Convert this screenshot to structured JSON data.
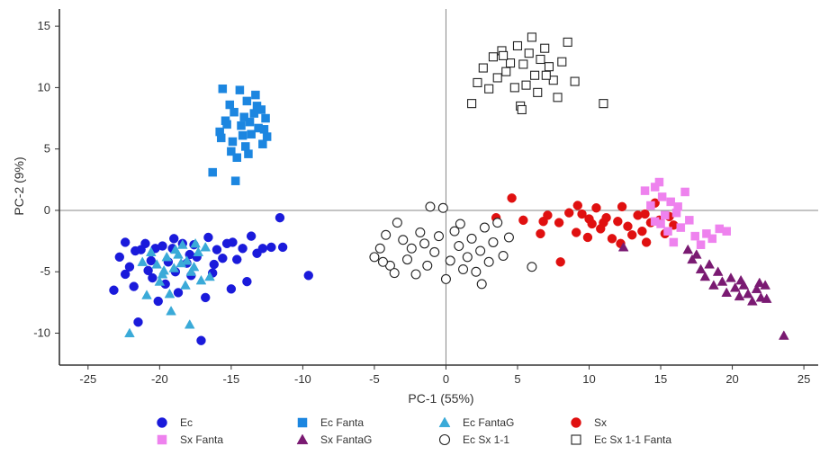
{
  "chart_data": {
    "type": "scatter",
    "title": "",
    "xlabel": "PC-1 (55%)",
    "ylabel": "PC-2 (9%)",
    "xlim": [
      -27,
      26
    ],
    "ylim": [
      -12.6,
      16.4
    ],
    "xticks": [
      -25,
      -20,
      -15,
      -10,
      -5,
      0,
      5,
      10,
      15,
      20,
      25
    ],
    "yticks": [
      -10,
      -5,
      0,
      5,
      10,
      15
    ],
    "grid": false,
    "zero_lines": true,
    "legend_position": "bottom",
    "series": [
      {
        "name": "Ec",
        "marker": "circle",
        "color": "#1a1adb",
        "filled": true,
        "points": [
          [
            -23.2,
            -6.5
          ],
          [
            -22.8,
            -3.8
          ],
          [
            -22.4,
            -2.6
          ],
          [
            -22.1,
            -4.6
          ],
          [
            -21.8,
            -6.2
          ],
          [
            -21.5,
            -9.1
          ],
          [
            -21.3,
            -3.2
          ],
          [
            -21.0,
            -2.7
          ],
          [
            -20.8,
            -4.9
          ],
          [
            -20.5,
            -5.5
          ],
          [
            -20.3,
            -3.1
          ],
          [
            -20.1,
            -7.4
          ],
          [
            -19.8,
            -2.9
          ],
          [
            -19.4,
            -4.2
          ],
          [
            -19.1,
            -3.1
          ],
          [
            -18.7,
            -6.7
          ],
          [
            -18.4,
            -2.7
          ],
          [
            -18.1,
            -4.3
          ],
          [
            -17.8,
            -5.3
          ],
          [
            -17.6,
            -2.8
          ],
          [
            -17.4,
            -3.8
          ],
          [
            -17.1,
            -10.6
          ],
          [
            -16.8,
            -7.1
          ],
          [
            -16.6,
            -2.2
          ],
          [
            -16.3,
            -5.1
          ],
          [
            -16.0,
            -3.2
          ],
          [
            -15.6,
            -3.9
          ],
          [
            -15.3,
            -2.7
          ],
          [
            -15.0,
            -6.4
          ],
          [
            -14.6,
            -4.0
          ],
          [
            -14.2,
            -3.1
          ],
          [
            -13.9,
            -5.8
          ],
          [
            -13.6,
            -2.1
          ],
          [
            -13.2,
            -3.5
          ],
          [
            -12.8,
            -3.1
          ],
          [
            -12.2,
            -3.0
          ],
          [
            -11.6,
            -0.6
          ],
          [
            -11.4,
            -3.0
          ],
          [
            -9.6,
            -5.3
          ],
          [
            -21.7,
            -3.3
          ],
          [
            -19.6,
            -6.0
          ],
          [
            -17.9,
            -3.6
          ],
          [
            -16.2,
            -4.4
          ],
          [
            -14.9,
            -2.6
          ],
          [
            -20.6,
            -4.1
          ],
          [
            -18.9,
            -5.0
          ],
          [
            -22.4,
            -5.2
          ],
          [
            -19.0,
            -2.3
          ]
        ]
      },
      {
        "name": "Ec Fanta",
        "marker": "square",
        "color": "#1c86e0",
        "filled": true,
        "points": [
          [
            -16.3,
            3.1
          ],
          [
            -15.8,
            6.4
          ],
          [
            -15.6,
            9.9
          ],
          [
            -15.4,
            7.3
          ],
          [
            -15.1,
            8.6
          ],
          [
            -14.9,
            5.6
          ],
          [
            -14.7,
            2.4
          ],
          [
            -14.6,
            4.3
          ],
          [
            -14.4,
            9.8
          ],
          [
            -14.3,
            6.9
          ],
          [
            -14.1,
            7.6
          ],
          [
            -13.9,
            8.9
          ],
          [
            -13.8,
            4.6
          ],
          [
            -13.6,
            6.2
          ],
          [
            -13.4,
            7.9
          ],
          [
            -13.3,
            9.4
          ],
          [
            -13.1,
            6.7
          ],
          [
            -12.9,
            8.2
          ],
          [
            -12.8,
            5.4
          ],
          [
            -12.6,
            7.5
          ],
          [
            -12.5,
            6.0
          ],
          [
            -15.7,
            5.9
          ],
          [
            -15.3,
            7.0
          ],
          [
            -14.8,
            8.0
          ],
          [
            -14.2,
            6.1
          ],
          [
            -13.7,
            7.2
          ],
          [
            -13.2,
            8.5
          ],
          [
            -12.7,
            6.6
          ],
          [
            -15.0,
            4.8
          ],
          [
            -14.0,
            5.2
          ]
        ]
      },
      {
        "name": "Ec FantaG",
        "marker": "triangle",
        "color": "#3aaad8",
        "filled": true,
        "points": [
          [
            -22.1,
            -10.0
          ],
          [
            -21.2,
            -4.2
          ],
          [
            -20.9,
            -6.9
          ],
          [
            -20.6,
            -3.4
          ],
          [
            -20.2,
            -4.4
          ],
          [
            -19.8,
            -5.2
          ],
          [
            -19.5,
            -3.8
          ],
          [
            -19.2,
            -8.2
          ],
          [
            -19.0,
            -4.7
          ],
          [
            -18.7,
            -3.6
          ],
          [
            -18.4,
            -2.8
          ],
          [
            -18.2,
            -6.1
          ],
          [
            -17.9,
            -9.3
          ],
          [
            -17.6,
            -4.6
          ],
          [
            -17.3,
            -3.4
          ],
          [
            -17.1,
            -5.7
          ],
          [
            -16.8,
            -3.0
          ],
          [
            -16.5,
            -5.4
          ],
          [
            -18.1,
            -4.1
          ],
          [
            -19.7,
            -4.9
          ],
          [
            -17.8,
            -5.0
          ],
          [
            -18.9,
            -3.2
          ],
          [
            -20.0,
            -5.8
          ],
          [
            -18.5,
            -4.3
          ],
          [
            -17.5,
            -2.7
          ],
          [
            -19.3,
            -6.8
          ]
        ]
      },
      {
        "name": "Sx",
        "marker": "circle",
        "color": "#e01010",
        "filled": true,
        "points": [
          [
            3.5,
            -0.6
          ],
          [
            4.6,
            1.0
          ],
          [
            5.4,
            -0.8
          ],
          [
            6.6,
            -1.9
          ],
          [
            7.1,
            -0.4
          ],
          [
            7.9,
            -1.0
          ],
          [
            8.0,
            -4.2
          ],
          [
            8.6,
            -0.2
          ],
          [
            9.1,
            -1.8
          ],
          [
            9.5,
            -0.3
          ],
          [
            9.9,
            -2.2
          ],
          [
            10.2,
            -1.1
          ],
          [
            10.5,
            0.2
          ],
          [
            10.8,
            -1.5
          ],
          [
            11.2,
            -0.6
          ],
          [
            11.6,
            -2.3
          ],
          [
            12.0,
            -0.9
          ],
          [
            12.3,
            0.3
          ],
          [
            12.7,
            -1.3
          ],
          [
            13.0,
            -2.0
          ],
          [
            13.4,
            -0.4
          ],
          [
            13.7,
            -1.7
          ],
          [
            14.0,
            -2.6
          ],
          [
            14.3,
            -1.0
          ],
          [
            14.6,
            0.6
          ],
          [
            14.9,
            -0.8
          ],
          [
            15.3,
            -1.9
          ],
          [
            15.6,
            -0.5
          ],
          [
            15.9,
            -1.2
          ],
          [
            12.2,
            -2.7
          ],
          [
            9.2,
            0.4
          ],
          [
            10.0,
            -0.7
          ],
          [
            11.0,
            -1.0
          ],
          [
            13.9,
            -0.3
          ],
          [
            6.8,
            -0.9
          ]
        ]
      },
      {
        "name": "Sx Fanta",
        "marker": "square",
        "color": "#ee82ee",
        "filled": true,
        "points": [
          [
            13.9,
            1.6
          ],
          [
            14.3,
            0.4
          ],
          [
            14.6,
            -0.9
          ],
          [
            14.9,
            2.3
          ],
          [
            15.1,
            1.1
          ],
          [
            15.3,
            -0.4
          ],
          [
            15.5,
            -1.7
          ],
          [
            15.7,
            0.7
          ],
          [
            15.9,
            -2.6
          ],
          [
            16.1,
            -0.2
          ],
          [
            16.4,
            -1.4
          ],
          [
            16.7,
            1.5
          ],
          [
            17.0,
            -0.8
          ],
          [
            17.4,
            -2.1
          ],
          [
            17.8,
            -2.8
          ],
          [
            18.2,
            -1.9
          ],
          [
            18.6,
            -2.3
          ],
          [
            19.1,
            -1.5
          ],
          [
            19.6,
            -1.7
          ],
          [
            16.2,
            0.3
          ],
          [
            15.0,
            -1.1
          ],
          [
            14.6,
            1.9
          ]
        ]
      },
      {
        "name": "Sx FantaG",
        "marker": "triangle",
        "color": "#7a1a72",
        "filled": true,
        "points": [
          [
            12.4,
            -3.0
          ],
          [
            16.9,
            -3.2
          ],
          [
            17.2,
            -4.0
          ],
          [
            17.5,
            -3.6
          ],
          [
            17.8,
            -4.8
          ],
          [
            18.1,
            -5.4
          ],
          [
            18.4,
            -4.4
          ],
          [
            18.7,
            -6.1
          ],
          [
            19.0,
            -5.0
          ],
          [
            19.3,
            -5.8
          ],
          [
            19.6,
            -6.7
          ],
          [
            19.9,
            -5.5
          ],
          [
            20.2,
            -6.3
          ],
          [
            20.5,
            -7.0
          ],
          [
            20.8,
            -6.1
          ],
          [
            21.1,
            -6.8
          ],
          [
            21.4,
            -7.4
          ],
          [
            21.7,
            -6.4
          ],
          [
            22.0,
            -7.1
          ],
          [
            22.3,
            -6.1
          ],
          [
            22.4,
            -7.2
          ],
          [
            23.6,
            -10.2
          ],
          [
            21.9,
            -5.9
          ],
          [
            20.6,
            -5.7
          ]
        ]
      },
      {
        "name": "Ec Sx 1-1",
        "marker": "circle",
        "color": "#222222",
        "filled": false,
        "points": [
          [
            -5.0,
            -3.8
          ],
          [
            -4.6,
            -3.1
          ],
          [
            -4.2,
            -2.0
          ],
          [
            -3.9,
            -4.5
          ],
          [
            -3.6,
            -5.1
          ],
          [
            -3.4,
            -1.0
          ],
          [
            -3.0,
            -2.4
          ],
          [
            -2.7,
            -4.0
          ],
          [
            -2.4,
            -3.1
          ],
          [
            -2.1,
            -5.2
          ],
          [
            -1.8,
            -1.8
          ],
          [
            -1.5,
            -2.7
          ],
          [
            -1.1,
            0.3
          ],
          [
            -0.8,
            -3.4
          ],
          [
            -0.5,
            -2.1
          ],
          [
            -0.2,
            0.2
          ],
          [
            0.0,
            -5.6
          ],
          [
            0.3,
            -4.1
          ],
          [
            0.6,
            -1.7
          ],
          [
            0.9,
            -2.9
          ],
          [
            1.2,
            -4.8
          ],
          [
            1.5,
            -3.8
          ],
          [
            1.8,
            -2.3
          ],
          [
            2.1,
            -5.0
          ],
          [
            2.4,
            -3.3
          ],
          [
            2.7,
            -1.4
          ],
          [
            3.0,
            -4.2
          ],
          [
            3.3,
            -2.6
          ],
          [
            3.6,
            -1.0
          ],
          [
            4.0,
            -3.7
          ],
          [
            4.4,
            -2.2
          ],
          [
            6.0,
            -4.6
          ],
          [
            -4.4,
            -4.2
          ],
          [
            -1.3,
            -4.5
          ],
          [
            2.5,
            -6.0
          ],
          [
            1.0,
            -1.1
          ]
        ]
      },
      {
        "name": "Ec Sx 1-1 Fanta",
        "marker": "square",
        "color": "#222222",
        "filled": false,
        "points": [
          [
            1.8,
            8.7
          ],
          [
            2.2,
            10.4
          ],
          [
            2.6,
            11.6
          ],
          [
            3.0,
            9.9
          ],
          [
            3.3,
            12.5
          ],
          [
            3.6,
            10.8
          ],
          [
            3.9,
            13.0
          ],
          [
            4.2,
            11.3
          ],
          [
            4.5,
            12.0
          ],
          [
            4.8,
            10.0
          ],
          [
            5.0,
            13.4
          ],
          [
            5.2,
            8.5
          ],
          [
            5.4,
            11.9
          ],
          [
            5.6,
            10.2
          ],
          [
            5.8,
            12.8
          ],
          [
            6.0,
            14.1
          ],
          [
            6.2,
            11.0
          ],
          [
            6.4,
            9.6
          ],
          [
            6.6,
            12.3
          ],
          [
            6.9,
            13.2
          ],
          [
            7.2,
            11.7
          ],
          [
            7.5,
            10.6
          ],
          [
            7.8,
            9.2
          ],
          [
            8.1,
            12.1
          ],
          [
            8.5,
            13.7
          ],
          [
            9.0,
            10.5
          ],
          [
            11.0,
            8.7
          ],
          [
            5.3,
            8.2
          ],
          [
            4.0,
            12.6
          ],
          [
            7.0,
            11.0
          ]
        ]
      }
    ]
  }
}
